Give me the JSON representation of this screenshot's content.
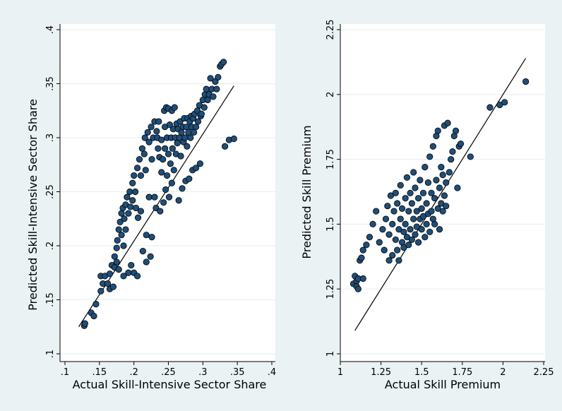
{
  "colors": {
    "background": "#eaf2f3",
    "plot_region": "#ffffff",
    "gridline": "#e6eef0",
    "marker_fill": "#1f4e79",
    "marker_stroke": "#000000",
    "fit_line": "#000000"
  },
  "chart_data": [
    {
      "type": "scatter",
      "title": "",
      "xlabel": "Actual Skill-Intensive Sector Share",
      "ylabel": "Predicted Skill-Intensive Sector Share",
      "xlim": [
        0.1,
        0.4
      ],
      "ylim": [
        0.1,
        0.4
      ],
      "xticks": [
        ".1",
        ".15",
        ".2",
        ".25",
        ".3",
        ".35",
        ".4"
      ],
      "yticks": [
        ".1",
        ".15",
        ".2",
        ".25",
        ".3",
        ".35",
        ".4"
      ],
      "grid": "horizontal",
      "fit_line": {
        "x": [
          0.12,
          0.345
        ],
        "y": [
          0.125,
          0.348
        ]
      },
      "points": [
        [
          0.128,
          0.126
        ],
        [
          0.129,
          0.128
        ],
        [
          0.138,
          0.138
        ],
        [
          0.142,
          0.135
        ],
        [
          0.145,
          0.146
        ],
        [
          0.152,
          0.158
        ],
        [
          0.155,
          0.165
        ],
        [
          0.152,
          0.172
        ],
        [
          0.158,
          0.172
        ],
        [
          0.162,
          0.165
        ],
        [
          0.165,
          0.174
        ],
        [
          0.168,
          0.182
        ],
        [
          0.165,
          0.16
        ],
        [
          0.17,
          0.162
        ],
        [
          0.172,
          0.18
        ],
        [
          0.172,
          0.19
        ],
        [
          0.175,
          0.185
        ],
        [
          0.175,
          0.198
        ],
        [
          0.176,
          0.205
        ],
        [
          0.178,
          0.178
        ],
        [
          0.178,
          0.215
        ],
        [
          0.18,
          0.222
        ],
        [
          0.182,
          0.21
        ],
        [
          0.182,
          0.23
        ],
        [
          0.184,
          0.235
        ],
        [
          0.185,
          0.2
        ],
        [
          0.185,
          0.172
        ],
        [
          0.186,
          0.225
        ],
        [
          0.188,
          0.238
        ],
        [
          0.188,
          0.215
        ],
        [
          0.19,
          0.245
        ],
        [
          0.192,
          0.175
        ],
        [
          0.192,
          0.23
        ],
        [
          0.194,
          0.25
        ],
        [
          0.195,
          0.236
        ],
        [
          0.196,
          0.182
        ],
        [
          0.198,
          0.258
        ],
        [
          0.198,
          0.242
        ],
        [
          0.2,
          0.175
        ],
        [
          0.2,
          0.265
        ],
        [
          0.202,
          0.25
        ],
        [
          0.203,
          0.235
        ],
        [
          0.205,
          0.272
        ],
        [
          0.205,
          0.172
        ],
        [
          0.206,
          0.226
        ],
        [
          0.208,
          0.28
        ],
        [
          0.21,
          0.265
        ],
        [
          0.21,
          0.232
        ],
        [
          0.212,
          0.29
        ],
        [
          0.213,
          0.195
        ],
        [
          0.215,
          0.285
        ],
        [
          0.216,
          0.3
        ],
        [
          0.217,
          0.27
        ],
        [
          0.218,
          0.185
        ],
        [
          0.218,
          0.21
        ],
        [
          0.22,
          0.305
        ],
        [
          0.222,
          0.296
        ],
        [
          0.222,
          0.245
        ],
        [
          0.224,
          0.19
        ],
        [
          0.225,
          0.31
        ],
        [
          0.226,
          0.28
        ],
        [
          0.226,
          0.208
        ],
        [
          0.228,
          0.3
        ],
        [
          0.23,
          0.315
        ],
        [
          0.23,
          0.245
        ],
        [
          0.232,
          0.235
        ],
        [
          0.233,
          0.306
        ],
        [
          0.234,
          0.3
        ],
        [
          0.235,
          0.29
        ],
        [
          0.236,
          0.315
        ],
        [
          0.237,
          0.282
        ],
        [
          0.238,
          0.232
        ],
        [
          0.24,
          0.298
        ],
        [
          0.24,
          0.268
        ],
        [
          0.242,
          0.28
        ],
        [
          0.243,
          0.24
        ],
        [
          0.244,
          0.325
        ],
        [
          0.245,
          0.31
        ],
        [
          0.245,
          0.29
        ],
        [
          0.246,
          0.252
        ],
        [
          0.247,
          0.328
        ],
        [
          0.248,
          0.3
        ],
        [
          0.248,
          0.265
        ],
        [
          0.25,
          0.327
        ],
        [
          0.25,
          0.285
        ],
        [
          0.251,
          0.245
        ],
        [
          0.252,
          0.312
        ],
        [
          0.253,
          0.276
        ],
        [
          0.254,
          0.3
        ],
        [
          0.255,
          0.325
        ],
        [
          0.255,
          0.258
        ],
        [
          0.256,
          0.29
        ],
        [
          0.257,
          0.308
        ],
        [
          0.258,
          0.27
        ],
        [
          0.259,
          0.328
        ],
        [
          0.26,
          0.3
        ],
        [
          0.261,
          0.285
        ],
        [
          0.262,
          0.313
        ],
        [
          0.263,
          0.295
        ],
        [
          0.264,
          0.308
        ],
        [
          0.265,
          0.242
        ],
        [
          0.266,
          0.3
        ],
        [
          0.267,
          0.315
        ],
        [
          0.268,
          0.283
        ],
        [
          0.269,
          0.305
        ],
        [
          0.27,
          0.253
        ],
        [
          0.271,
          0.31
        ],
        [
          0.272,
          0.296
        ],
        [
          0.273,
          0.318
        ],
        [
          0.274,
          0.3
        ],
        [
          0.275,
          0.26
        ],
        [
          0.276,
          0.31
        ],
        [
          0.277,
          0.292
        ],
        [
          0.278,
          0.318
        ],
        [
          0.279,
          0.305
        ],
        [
          0.28,
          0.262
        ],
        [
          0.281,
          0.315
        ],
        [
          0.282,
          0.3
        ],
        [
          0.283,
          0.32
        ],
        [
          0.284,
          0.31
        ],
        [
          0.285,
          0.27
        ],
        [
          0.286,
          0.318
        ],
        [
          0.287,
          0.305
        ],
        [
          0.288,
          0.322
        ],
        [
          0.29,
          0.31
        ],
        [
          0.29,
          0.272
        ],
        [
          0.292,
          0.325
        ],
        [
          0.293,
          0.315
        ],
        [
          0.295,
          0.33
        ],
        [
          0.296,
          0.276
        ],
        [
          0.297,
          0.32
        ],
        [
          0.298,
          0.322
        ],
        [
          0.3,
          0.335
        ],
        [
          0.302,
          0.328
        ],
        [
          0.303,
          0.34
        ],
        [
          0.305,
          0.345
        ],
        [
          0.307,
          0.335
        ],
        [
          0.309,
          0.34
        ],
        [
          0.311,
          0.355
        ],
        [
          0.313,
          0.345
        ],
        [
          0.315,
          0.338
        ],
        [
          0.318,
          0.352
        ],
        [
          0.32,
          0.345
        ],
        [
          0.322,
          0.356
        ],
        [
          0.325,
          0.366
        ],
        [
          0.327,
          0.368
        ],
        [
          0.33,
          0.37
        ],
        [
          0.332,
          0.292
        ],
        [
          0.338,
          0.298
        ],
        [
          0.345,
          0.299
        ]
      ]
    },
    {
      "type": "scatter",
      "title": "",
      "xlabel": "Actual Skill Premium",
      "ylabel": "Predicted Skill Premium",
      "xlim": [
        1,
        2.25
      ],
      "ylim": [
        1,
        2.25
      ],
      "xticks": [
        "1",
        "1.25",
        "1.5",
        "1.75",
        "2",
        "2.25"
      ],
      "yticks": [
        "1",
        "1.25",
        "1.5",
        "1.75",
        "2",
        "2.25"
      ],
      "grid": "horizontal",
      "fit_line": {
        "x": [
          1.09,
          2.14
        ],
        "y": [
          1.09,
          2.14
        ]
      },
      "points": [
        [
          1.08,
          1.27
        ],
        [
          1.09,
          1.3
        ],
        [
          1.1,
          1.28
        ],
        [
          1.1,
          1.26
        ],
        [
          1.11,
          1.25
        ],
        [
          1.11,
          1.29
        ],
        [
          1.12,
          1.36
        ],
        [
          1.13,
          1.37
        ],
        [
          1.14,
          1.4
        ],
        [
          1.14,
          1.29
        ],
        [
          1.16,
          1.42
        ],
        [
          1.18,
          1.45
        ],
        [
          1.2,
          1.5
        ],
        [
          1.22,
          1.55
        ],
        [
          1.24,
          1.43
        ],
        [
          1.26,
          1.48
        ],
        [
          1.27,
          1.4
        ],
        [
          1.28,
          1.52
        ],
        [
          1.29,
          1.57
        ],
        [
          1.3,
          1.36
        ],
        [
          1.3,
          1.46
        ],
        [
          1.31,
          1.61
        ],
        [
          1.32,
          1.5
        ],
        [
          1.32,
          1.38
        ],
        [
          1.33,
          1.55
        ],
        [
          1.34,
          1.44
        ],
        [
          1.34,
          1.62
        ],
        [
          1.35,
          1.4
        ],
        [
          1.35,
          1.58
        ],
        [
          1.36,
          1.48
        ],
        [
          1.36,
          1.36
        ],
        [
          1.37,
          1.52
        ],
        [
          1.37,
          1.65
        ],
        [
          1.38,
          1.43
        ],
        [
          1.38,
          1.56
        ],
        [
          1.39,
          1.47
        ],
        [
          1.39,
          1.41
        ],
        [
          1.4,
          1.6
        ],
        [
          1.4,
          1.5
        ],
        [
          1.41,
          1.45
        ],
        [
          1.41,
          1.68
        ],
        [
          1.42,
          1.42
        ],
        [
          1.42,
          1.55
        ],
        [
          1.43,
          1.62
        ],
        [
          1.43,
          1.48
        ],
        [
          1.44,
          1.44
        ],
        [
          1.44,
          1.58
        ],
        [
          1.45,
          1.7
        ],
        [
          1.45,
          1.52
        ],
        [
          1.46,
          1.46
        ],
        [
          1.46,
          1.64
        ],
        [
          1.47,
          1.55
        ],
        [
          1.47,
          1.49
        ],
        [
          1.48,
          1.6
        ],
        [
          1.48,
          1.43
        ],
        [
          1.49,
          1.52
        ],
        [
          1.49,
          1.67
        ],
        [
          1.5,
          1.56
        ],
        [
          1.5,
          1.48
        ],
        [
          1.51,
          1.62
        ],
        [
          1.51,
          1.53
        ],
        [
          1.52,
          1.72
        ],
        [
          1.52,
          1.45
        ],
        [
          1.53,
          1.58
        ],
        [
          1.53,
          1.5
        ],
        [
          1.54,
          1.66
        ],
        [
          1.54,
          1.54
        ],
        [
          1.55,
          1.76
        ],
        [
          1.55,
          1.47
        ],
        [
          1.56,
          1.62
        ],
        [
          1.56,
          1.55
        ],
        [
          1.57,
          1.52
        ],
        [
          1.57,
          1.8
        ],
        [
          1.58,
          1.6
        ],
        [
          1.58,
          1.5
        ],
        [
          1.59,
          1.67
        ],
        [
          1.59,
          1.84
        ],
        [
          1.6,
          1.56
        ],
        [
          1.6,
          1.86
        ],
        [
          1.61,
          1.48
        ],
        [
          1.61,
          1.64
        ],
        [
          1.62,
          1.58
        ],
        [
          1.62,
          1.72
        ],
        [
          1.63,
          1.55
        ],
        [
          1.63,
          1.69
        ],
        [
          1.64,
          1.61
        ],
        [
          1.64,
          1.88
        ],
        [
          1.65,
          1.57
        ],
        [
          1.65,
          1.66
        ],
        [
          1.66,
          1.89
        ],
        [
          1.67,
          1.7
        ],
        [
          1.68,
          1.75
        ],
        [
          1.69,
          1.78
        ],
        [
          1.7,
          1.84
        ],
        [
          1.71,
          1.86
        ],
        [
          1.72,
          1.64
        ],
        [
          1.73,
          1.8
        ],
        [
          1.74,
          1.81
        ],
        [
          1.8,
          1.76
        ],
        [
          1.92,
          1.95
        ],
        [
          1.98,
          1.96
        ],
        [
          2.01,
          1.97
        ],
        [
          2.14,
          2.05
        ]
      ]
    }
  ]
}
